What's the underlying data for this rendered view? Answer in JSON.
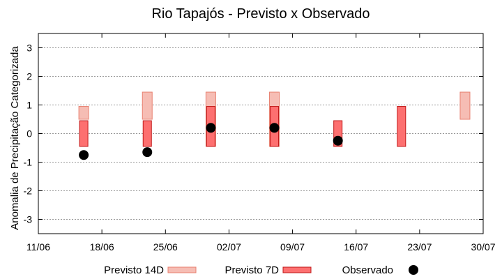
{
  "chart_data": {
    "type": "bar",
    "title": "Rio Tapajós - Previsto x Observado",
    "xlabel": "",
    "ylabel": "Anomalia de Precipitação Categorizada",
    "ylim": [
      -3.5,
      3.5
    ],
    "yticks": [
      -3,
      -2,
      -1,
      0,
      1,
      2,
      3
    ],
    "y_grid": true,
    "x_tick_labels": [
      "11/06",
      "18/06",
      "25/06",
      "02/07",
      "09/07",
      "16/07",
      "23/07",
      "30/07"
    ],
    "legend_position": "bottom",
    "series": [
      {
        "name": "Previsto 14D",
        "kind": "range",
        "color": "#f6bdb4",
        "edge_color": "#e88070",
        "points": [
          {
            "date": "16/06",
            "low": 0.5,
            "high": 0.95
          },
          {
            "date": "23/06",
            "low": 0.5,
            "high": 1.45
          },
          {
            "date": "30/06",
            "low": -0.45,
            "high": 1.45
          },
          {
            "date": "07/07",
            "low": -0.45,
            "high": 1.45
          },
          {
            "date": "28/07",
            "low": 0.5,
            "high": 1.45
          }
        ]
      },
      {
        "name": "Previsto 7D",
        "kind": "range",
        "color": "#fd7070",
        "edge_color": "#c01818",
        "points": [
          {
            "date": "16/06",
            "low": -0.45,
            "high": 0.45
          },
          {
            "date": "23/06",
            "low": -0.45,
            "high": 0.45
          },
          {
            "date": "30/06",
            "low": -0.45,
            "high": 0.95
          },
          {
            "date": "07/07",
            "low": -0.45,
            "high": 0.95
          },
          {
            "date": "14/07",
            "low": -0.45,
            "high": 0.45
          },
          {
            "date": "21/07",
            "low": -0.45,
            "high": 0.95
          }
        ]
      },
      {
        "name": "Observado",
        "kind": "point",
        "color": "#000000",
        "points": [
          {
            "date": "16/06",
            "value": -0.75
          },
          {
            "date": "23/06",
            "value": -0.65
          },
          {
            "date": "30/06",
            "value": 0.2
          },
          {
            "date": "07/07",
            "value": 0.2
          },
          {
            "date": "14/07",
            "value": -0.25
          }
        ]
      }
    ]
  }
}
